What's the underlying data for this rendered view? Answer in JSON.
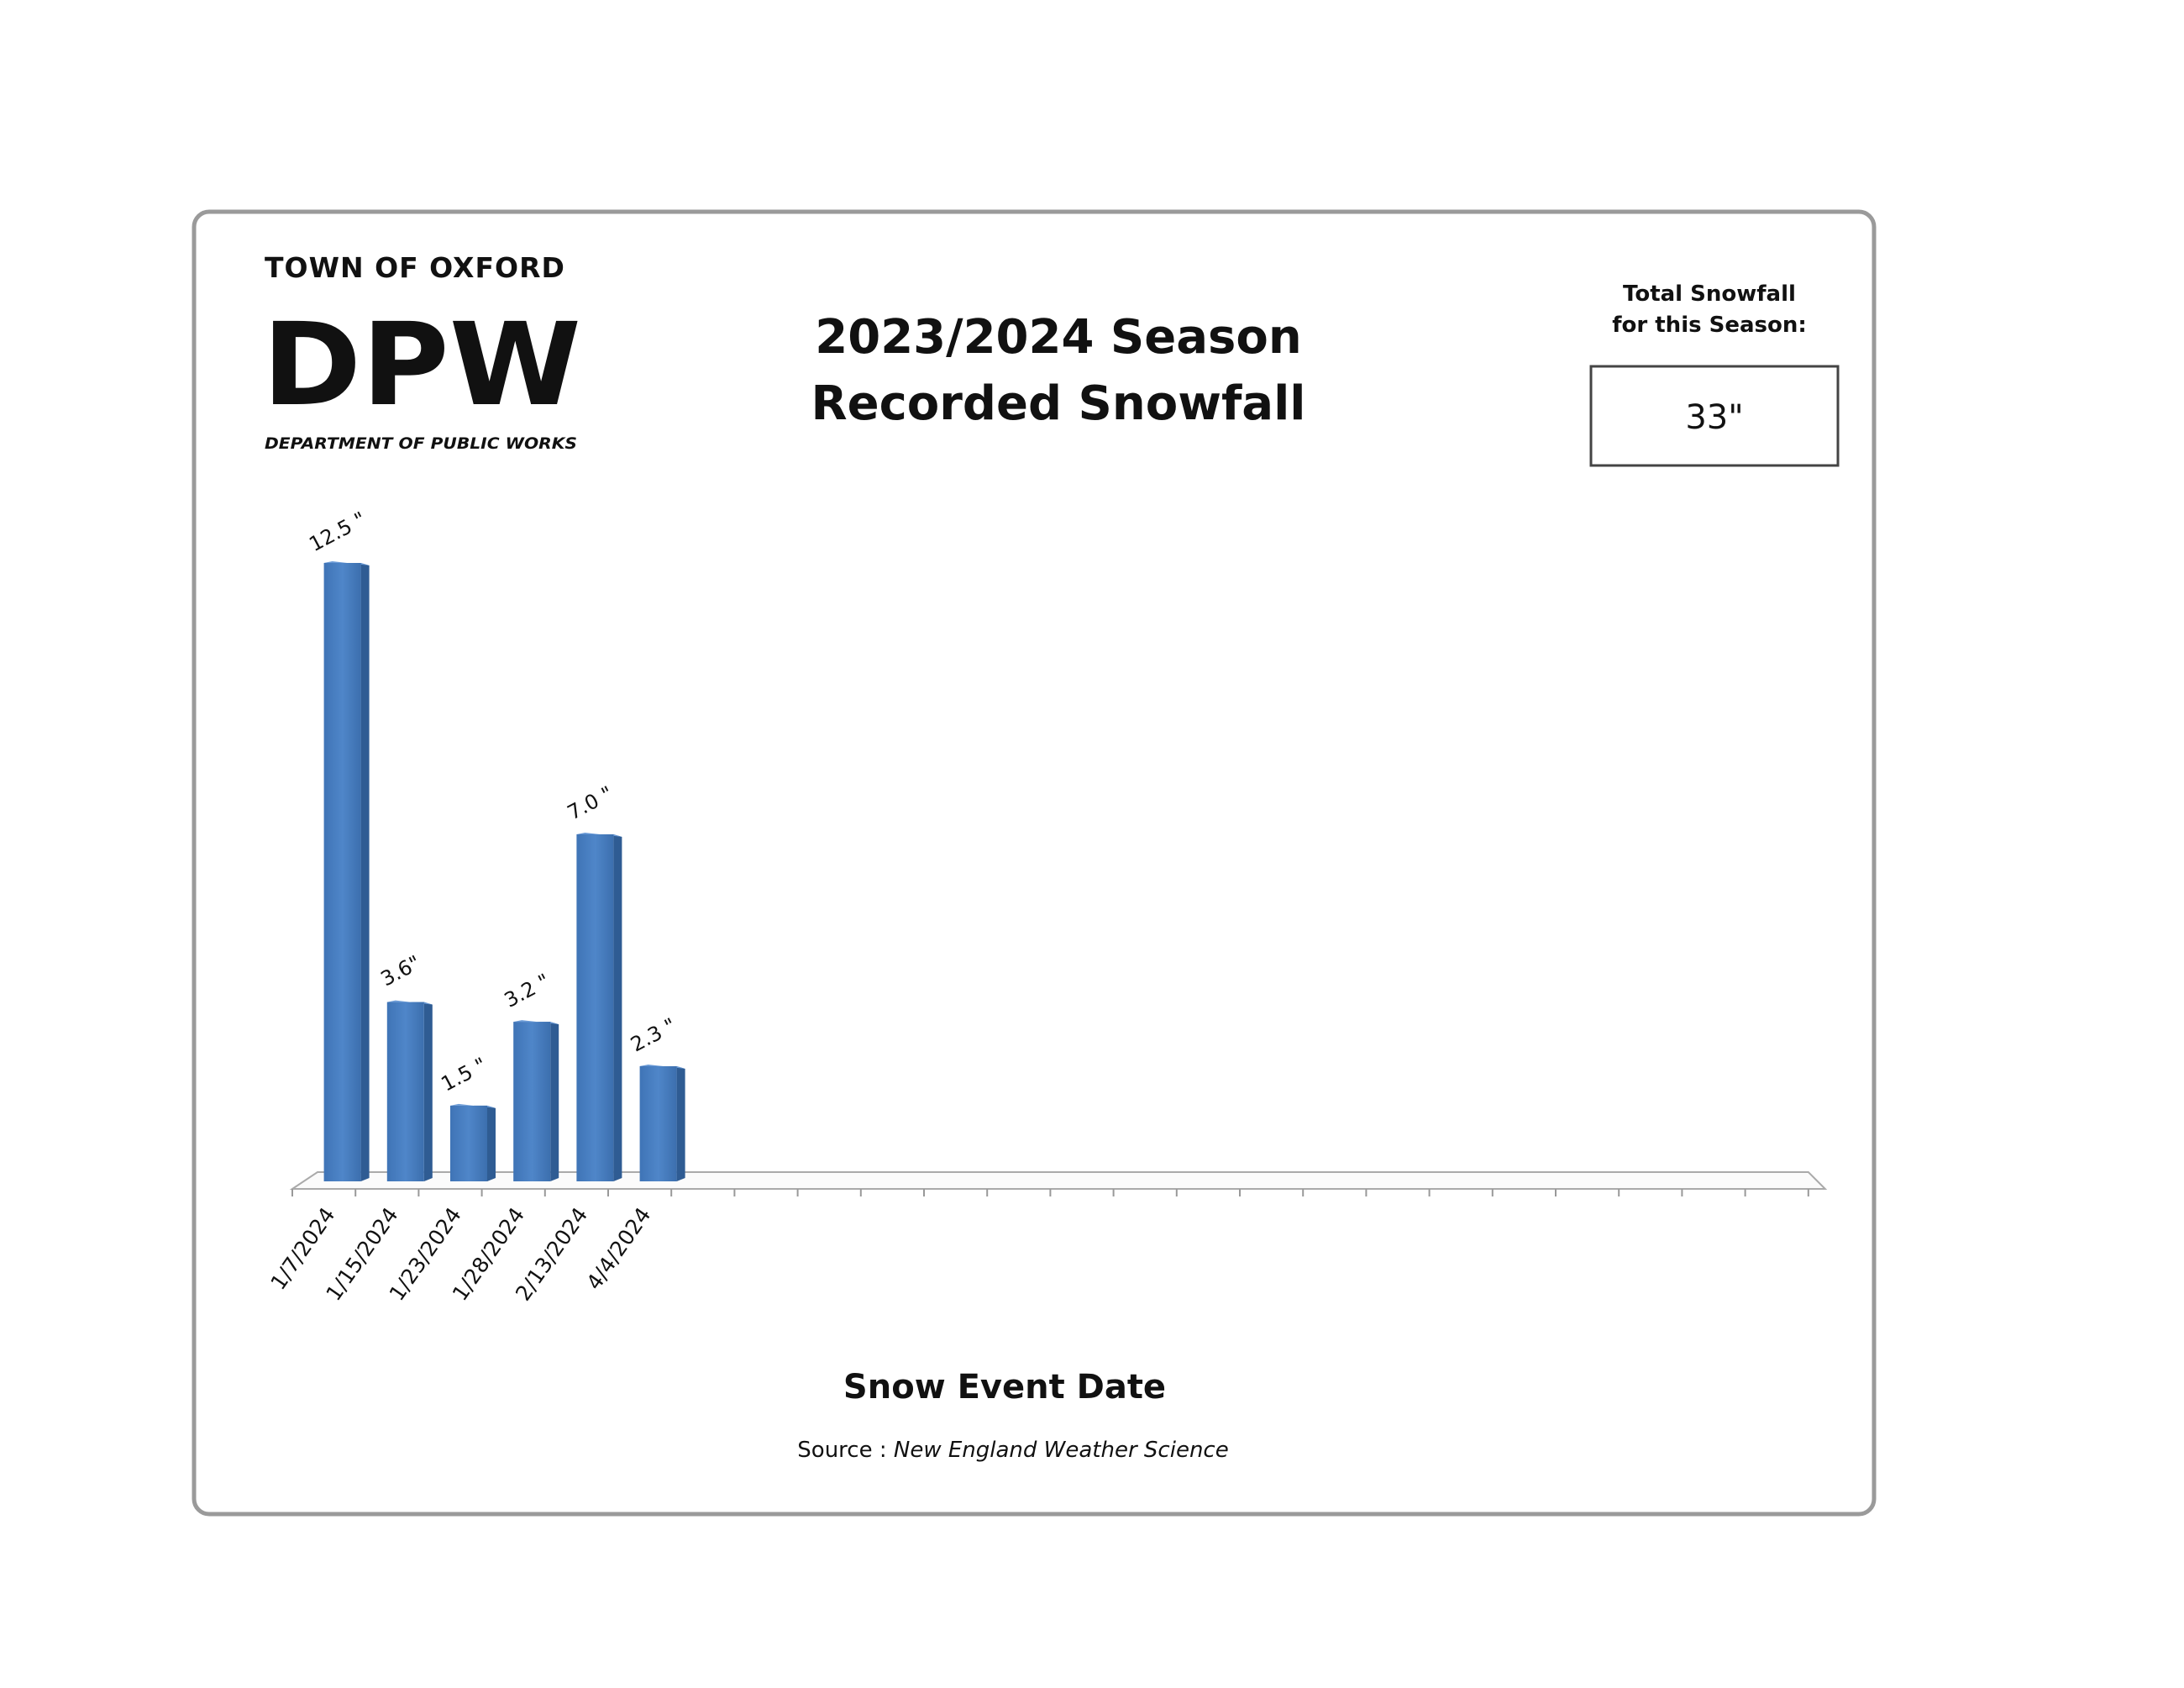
{
  "logo": {
    "town": "TOWN OF OXFORD",
    "mark": "DPW",
    "department": "DEPARTMENT OF PUBLIC WORKS"
  },
  "header": {
    "title_line1": "2023/2024 Season",
    "title_line2": "Recorded Snowfall"
  },
  "total": {
    "label_line1": "Total Snowfall",
    "label_line2": "for this Season:",
    "value": "33\""
  },
  "chart_data": {
    "type": "bar",
    "style": "3d-column",
    "categories": [
      "1/7/2024",
      "1/15/2024",
      "1/23/2024",
      "1/28/2024",
      "2/13/2024",
      "4/4/2024"
    ],
    "values": [
      12.5,
      3.6,
      1.5,
      3.2,
      7.0,
      2.3
    ],
    "data_labels": [
      "12.5 \"",
      "3.6\"",
      "1.5 \"",
      "3.2 \"",
      "7.0 \"",
      "2.3 \""
    ],
    "xlabel": "Snow Event Date",
    "ylabel": "",
    "unit": "inches",
    "empty_slots_total": 24,
    "ylim": [
      0,
      12.5
    ],
    "grid": false,
    "bar_color": "#4a7ebf"
  },
  "footer": {
    "source_label": "Source : ",
    "source_name": "New England Weather  Science"
  }
}
